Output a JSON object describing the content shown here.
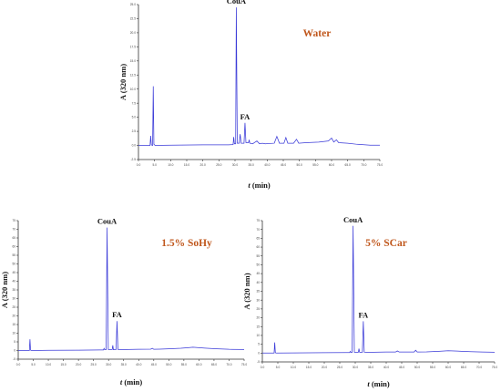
{
  "chart_data": [
    {
      "type": "line",
      "title": "Water",
      "xlabel_italic": "t",
      "xlabel_unit": "(min)",
      "ylabel": "A (320 nm)",
      "xlim": [
        0,
        75
      ],
      "ylim": [
        -2.5,
        25
      ],
      "x_tick_labels": [
        "0.0",
        "5.0",
        "10.0",
        "15.0",
        "20.0",
        "25.0",
        "30.0",
        "35.0",
        "40.0",
        "45.0",
        "50.0",
        "55.0",
        "60.0",
        "65.0",
        "70.0",
        "75.0"
      ],
      "y_tick_labels": [
        "-2.5",
        "0.0",
        "2.5",
        "5.0",
        "7.5",
        "10.0",
        "12.5",
        "15.0",
        "17.5",
        "20.0",
        "22.5",
        "25.0"
      ],
      "series": [
        {
          "values": [
            [
              0,
              0
            ],
            [
              3.6,
              0
            ],
            [
              3.8,
              1.7
            ],
            [
              4.0,
              0.1
            ],
            [
              4.4,
              0
            ],
            [
              4.6,
              10.5
            ],
            [
              4.8,
              0.2
            ],
            [
              5.2,
              0
            ],
            [
              10,
              0.05
            ],
            [
              20,
              0.1
            ],
            [
              28,
              0.1
            ],
            [
              29.4,
              0.15
            ],
            [
              29.6,
              1.5
            ],
            [
              29.8,
              0.3
            ],
            [
              30.2,
              0.3
            ],
            [
              30.4,
              24.5
            ],
            [
              30.7,
              0.4
            ],
            [
              31.3,
              0.4
            ],
            [
              31.6,
              2.0
            ],
            [
              31.9,
              0.4
            ],
            [
              32.8,
              0.4
            ],
            [
              33.1,
              4.0
            ],
            [
              33.4,
              0.5
            ],
            [
              34.2,
              0.5
            ],
            [
              34.4,
              1.0
            ],
            [
              34.6,
              0.4
            ],
            [
              35.5,
              0.3
            ],
            [
              36.8,
              0.8
            ],
            [
              37.6,
              0.3
            ],
            [
              38.5,
              0.4
            ],
            [
              39.4,
              0.3
            ],
            [
              42.2,
              0.4
            ],
            [
              43.0,
              1.6
            ],
            [
              43.8,
              0.4
            ],
            [
              45.2,
              0.4
            ],
            [
              45.8,
              1.4
            ],
            [
              46.4,
              0.4
            ],
            [
              48.2,
              0.4
            ],
            [
              49.1,
              1.1
            ],
            [
              49.8,
              0.4
            ],
            [
              52,
              0.5
            ],
            [
              56,
              0.6
            ],
            [
              59,
              0.8
            ],
            [
              60,
              1.3
            ],
            [
              60.7,
              0.6
            ],
            [
              61.5,
              1.0
            ],
            [
              62.2,
              0.5
            ],
            [
              65,
              0.4
            ],
            [
              68,
              0.2
            ],
            [
              72,
              0.05
            ],
            [
              75,
              0.05
            ]
          ]
        }
      ],
      "peak_labels": [
        {
          "text": "CouA",
          "x": 30.4,
          "y": 24.5
        },
        {
          "text": "FA",
          "x": 33.1,
          "y": 4.0
        }
      ]
    },
    {
      "type": "line",
      "title": "1.5% SoHy",
      "xlabel_italic": "t",
      "xlabel_unit": "(min)",
      "ylabel": "A (320 nm)",
      "xlim": [
        0,
        75
      ],
      "ylim": [
        -5,
        75
      ],
      "x_tick_labels": [
        "0.0",
        "5.0",
        "10.0",
        "15.0",
        "20.0",
        "25.0",
        "30.0",
        "35.0",
        "40.0",
        "45.0",
        "50.0",
        "55.0",
        "60.0",
        "65.0",
        "70.0",
        "75.0"
      ],
      "y_tick_labels": [
        "-5",
        "0",
        "5",
        "10",
        "15",
        "20",
        "25",
        "30",
        "35",
        "40",
        "45",
        "50",
        "55",
        "60",
        "65",
        "70",
        "75"
      ],
      "series": [
        {
          "values": [
            [
              0,
              0
            ],
            [
              3.7,
              0
            ],
            [
              3.9,
              6.5
            ],
            [
              4.1,
              0.2
            ],
            [
              4.5,
              0
            ],
            [
              10,
              0.1
            ],
            [
              20,
              0.2
            ],
            [
              27,
              0.3
            ],
            [
              28.3,
              0.3
            ],
            [
              28.5,
              1.2
            ],
            [
              28.7,
              0.5
            ],
            [
              29.2,
              0.5
            ],
            [
              29.5,
              71
            ],
            [
              29.9,
              0.6
            ],
            [
              31.2,
              0.6
            ],
            [
              31.4,
              3.0
            ],
            [
              31.6,
              0.5
            ],
            [
              32.5,
              0.6
            ],
            [
              32.8,
              17
            ],
            [
              33.1,
              0.6
            ],
            [
              33.5,
              0.5
            ],
            [
              36,
              0.6
            ],
            [
              40,
              0.7
            ],
            [
              44,
              0.8
            ],
            [
              44.5,
              1.3
            ],
            [
              45,
              0.7
            ],
            [
              47,
              0.8
            ],
            [
              50,
              1.0
            ],
            [
              54,
              1.3
            ],
            [
              56,
              1.6
            ],
            [
              58,
              1.9
            ],
            [
              59,
              1.8
            ],
            [
              62,
              1.4
            ],
            [
              66,
              1.0
            ],
            [
              70,
              0.7
            ],
            [
              75,
              0.6
            ]
          ]
        }
      ],
      "peak_labels": [
        {
          "text": "CouA",
          "x": 29.5,
          "y": 71
        },
        {
          "text": "FA",
          "x": 32.8,
          "y": 17
        }
      ]
    },
    {
      "type": "line",
      "title": "5% SCar",
      "xlabel_italic": "t",
      "xlabel_unit": "(min)",
      "ylabel": "A (320 nm)",
      "xlim": [
        0,
        75
      ],
      "ylim": [
        -5,
        75
      ],
      "x_tick_labels": [
        "0.0",
        "5.0",
        "10.0",
        "15.0",
        "20.0",
        "25.0",
        "30.0",
        "35.0",
        "40.0",
        "45.0",
        "50.0",
        "55.0",
        "60.0",
        "65.0",
        "70.0",
        "75.0"
      ],
      "y_tick_labels": [
        "-5",
        "0",
        "5",
        "10",
        "15",
        "20",
        "25",
        "30",
        "35",
        "40",
        "45",
        "50",
        "55",
        "60",
        "65",
        "70",
        "75"
      ],
      "series": [
        {
          "values": [
            [
              0,
              0
            ],
            [
              3.8,
              0
            ],
            [
              4.0,
              6.0
            ],
            [
              4.2,
              0.2
            ],
            [
              4.6,
              0
            ],
            [
              10,
              0.1
            ],
            [
              20,
              0.2
            ],
            [
              27,
              0.3
            ],
            [
              28.2,
              0.3
            ],
            [
              28.4,
              1.0
            ],
            [
              28.6,
              0.4
            ],
            [
              29.0,
              0.4
            ],
            [
              29.3,
              72
            ],
            [
              29.7,
              0.5
            ],
            [
              31.0,
              0.5
            ],
            [
              31.2,
              2.5
            ],
            [
              31.4,
              0.5
            ],
            [
              32.3,
              0.5
            ],
            [
              32.6,
              18
            ],
            [
              32.9,
              0.5
            ],
            [
              33.4,
              0.4
            ],
            [
              36,
              0.5
            ],
            [
              40,
              0.6
            ],
            [
              43,
              0.6
            ],
            [
              43.6,
              1.2
            ],
            [
              44.2,
              0.6
            ],
            [
              47,
              0.6
            ],
            [
              49,
              0.6
            ],
            [
              49.5,
              1.6
            ],
            [
              50,
              0.6
            ],
            [
              53,
              0.7
            ],
            [
              57,
              1.0
            ],
            [
              60,
              1.3
            ],
            [
              63,
              1.1
            ],
            [
              67,
              0.8
            ],
            [
              71,
              0.6
            ],
            [
              75,
              0.5
            ]
          ]
        }
      ],
      "peak_labels": [
        {
          "text": "CouA",
          "x": 29.3,
          "y": 72
        },
        {
          "text": "FA",
          "x": 32.6,
          "y": 18
        }
      ]
    }
  ]
}
